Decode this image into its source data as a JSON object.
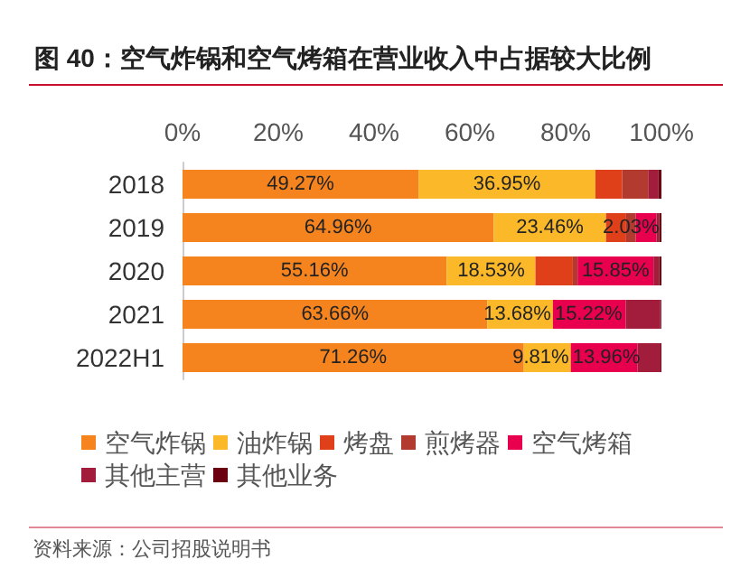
{
  "chart_data": {
    "type": "bar",
    "orientation": "horizontal",
    "stacked": true,
    "title": "图 40：空气炸锅和空气烤箱在营业收入中占据较大比例",
    "annotations": [
      "资料来源：公司招股说明书"
    ],
    "categories": [
      "2018",
      "2019",
      "2020",
      "2021",
      "2022H1"
    ],
    "series": [
      {
        "name": "空气炸锅",
        "color": "#f5841f",
        "values": [
          49.27,
          64.96,
          55.16,
          63.66,
          71.26
        ],
        "value_labels": [
          "49.27%",
          "64.96%",
          "55.16%",
          "63.66%",
          "71.26%"
        ]
      },
      {
        "name": "油炸锅",
        "color": "#fbb92a",
        "values": [
          36.95,
          23.46,
          18.53,
          13.68,
          9.81
        ],
        "value_labels": [
          "36.95%",
          "23.46%",
          "18.53%",
          "13.68%",
          "9.81%"
        ]
      },
      {
        "name": "烤盘",
        "color": "#e04019",
        "values": [
          5.6,
          4.2,
          7.8,
          null,
          null
        ],
        "value_labels": [
          null,
          null,
          null,
          null,
          null
        ]
      },
      {
        "name": "煎烤器",
        "color": "#b23a2f",
        "values": [
          5.4,
          2.03,
          1.0,
          null,
          null
        ],
        "value_labels": [
          null,
          "2.03%",
          null,
          null,
          null
        ]
      },
      {
        "name": "空气烤箱",
        "color": "#e8004f",
        "values": [
          null,
          4.3,
          15.85,
          15.22,
          13.96
        ],
        "value_labels": [
          null,
          null,
          "15.85%",
          "15.22%",
          "13.96%"
        ]
      },
      {
        "name": "其他主营",
        "color": "#a21c3c",
        "values": [
          2.1,
          0.6,
          1.2,
          7.2,
          4.8
        ],
        "value_labels": [
          null,
          null,
          null,
          null,
          null
        ]
      },
      {
        "name": "其他业务",
        "color": "#6b0010",
        "values": [
          0.7,
          0.5,
          0.5,
          0.2,
          0.2
        ],
        "value_labels": [
          null,
          null,
          null,
          null,
          null
        ]
      }
    ],
    "xlim": [
      0,
      100
    ],
    "xticks": [
      {
        "value": 0,
        "label": "0%"
      },
      {
        "value": 20,
        "label": "20%"
      },
      {
        "value": 40,
        "label": "40%"
      },
      {
        "value": 60,
        "label": "60%"
      },
      {
        "value": 80,
        "label": "80%"
      },
      {
        "value": 100,
        "label": "100%"
      }
    ],
    "grid": false,
    "legend": "bottom"
  }
}
